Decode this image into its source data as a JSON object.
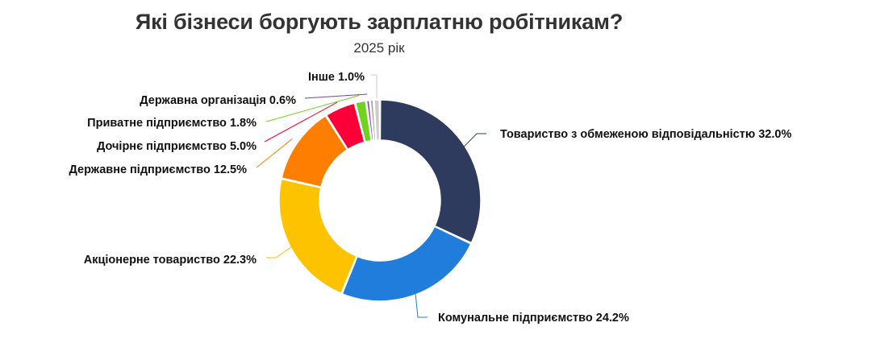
{
  "header": {
    "title": "Які бізнеси боргують зарплатню робітникам?",
    "subtitle": "2025 рік"
  },
  "chart_data": {
    "type": "pie",
    "variant": "donut",
    "title": "Які бізнеси боргують зарплатню робітникам?",
    "subtitle": "2025 рік",
    "start_angle_deg": 0,
    "direction": "clockwise",
    "categories": [
      "Товариство з обмеженою відповідальністю",
      "Комунальне підприємство",
      "Акціонерне товариство",
      "Державне підприємство",
      "Дочірнє підприємство",
      "Приватне підприємство",
      "Державна організація",
      "",
      "Інше"
    ],
    "values": [
      32.0,
      24.2,
      22.3,
      12.5,
      5.0,
      1.8,
      0.6,
      0.6,
      1.0
    ],
    "colors": [
      "#2e3b5e",
      "#217ddc",
      "#fdc200",
      "#fd7e00",
      "#fb0038",
      "#6fd31e",
      "#7e3fa0",
      "#9b9b9b",
      "#cccccc"
    ],
    "labels": [
      "Товариство з обмеженою відповідальністю 32.0%",
      "Комунальне підприємство 24.2%",
      "Акціонерне товариство 22.3%",
      "Державне підприємство 12.5%",
      "Дочірнє підприємство 5.0%",
      "Приватне підприємство 1.8%",
      "Державна організація 0.6%",
      "",
      "Інше 1.0%"
    ],
    "unit": "%",
    "legend": "none (direct labels with connector lines)"
  }
}
